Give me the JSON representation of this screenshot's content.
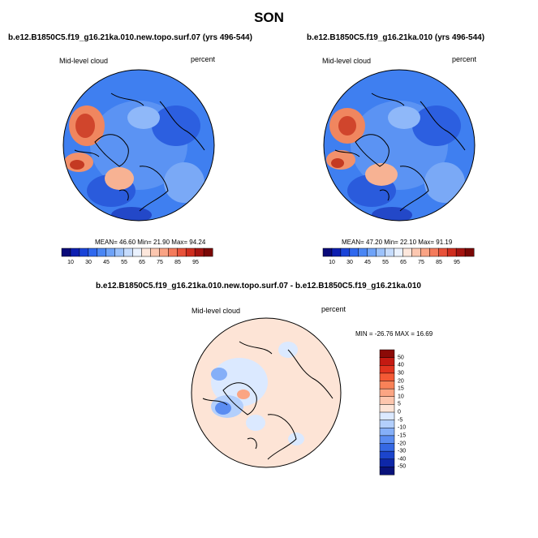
{
  "title": "SON",
  "panels": [
    {
      "title": "b.e12.B1850C5.f19_g16.21ka.010.new.topo.surf.07 (yrs 496-544)",
      "variable": "Mid-level cloud",
      "units": "percent",
      "stats": "MEAN=  46.60  Min=  21.90  Max=  94.24"
    },
    {
      "title": "b.e12.B1850C5.f19_g16.21ka.010 (yrs 496-544)",
      "variable": "Mid-level cloud",
      "units": "percent",
      "stats": "MEAN=  47.20  Min=  22.10  Max=  91.19"
    }
  ],
  "difference": {
    "title": "b.e12.B1850C5.f19_g16.21ka.010.new.topo.surf.07 - b.e12.B1850C5.f19_g16.21ka.010",
    "variable": "Mid-level cloud",
    "units": "percent",
    "stats": "MIN = -26.76 MAX =  16.69"
  },
  "colorbar_main": {
    "labels": [
      "10",
      "30",
      "45",
      "55",
      "65",
      "75",
      "85",
      "95"
    ],
    "colors": [
      "#0a0a7a",
      "#0d1fb0",
      "#1a44d8",
      "#2f68ee",
      "#4a86f4",
      "#6fa3f8",
      "#9cc2fb",
      "#c6dcfd",
      "#eaf2ff",
      "#fde7dc",
      "#fcc7b0",
      "#f9a384",
      "#f47b5c",
      "#e8523a",
      "#cf2d1e",
      "#a51410",
      "#7a0806"
    ]
  },
  "colorbar_diff": {
    "labels": [
      "50",
      "40",
      "30",
      "20",
      "15",
      "10",
      "5",
      "0",
      "-5",
      "-10",
      "-15",
      "-20",
      "-30",
      "-40",
      "-50"
    ],
    "colors": [
      "#8b0a07",
      "#c41a12",
      "#e2341f",
      "#f45a35",
      "#f88258",
      "#fba583",
      "#fdc6ad",
      "#fde4d6",
      "#dbe9ff",
      "#b3cffc",
      "#85aff8",
      "#5a8cf1",
      "#3568e3",
      "#1c45cc",
      "#0e27a8",
      "#09127a"
    ]
  }
}
